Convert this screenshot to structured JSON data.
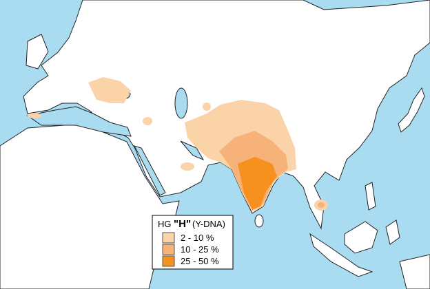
{
  "legend": {
    "title_prefix": "HG",
    "title_haplogroup": "\"H\"",
    "title_suffix": "(Y-DNA)",
    "items": [
      {
        "label": "2  -  10 %",
        "color": "#fbd3a9"
      },
      {
        "label": "10 - 25 %",
        "color": "#f7b27a"
      },
      {
        "label": "25 - 50 %",
        "color": "#f6901f"
      }
    ]
  }
}
